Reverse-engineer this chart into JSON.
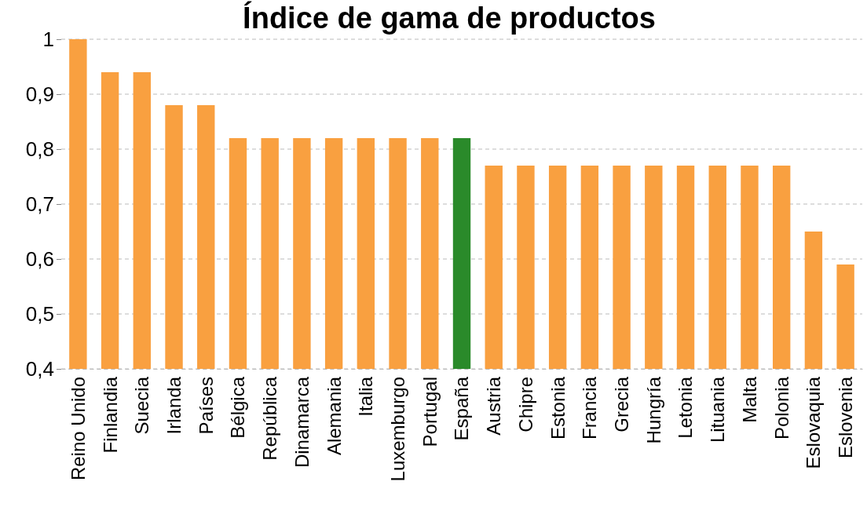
{
  "chart_data": {
    "type": "bar",
    "title": "Índice de gama de productos",
    "categories": [
      "Reino Unido",
      "Finlandia",
      "Suecia",
      "Irlanda",
      "Países",
      "Bélgica",
      "República",
      "Dinamarca",
      "Alemania",
      "Italia",
      "Luxemburgo",
      "Portugal",
      "España",
      "Austria",
      "Chipre",
      "Estonia",
      "Francia",
      "Grecia",
      "Hungría",
      "Letonia",
      "Lituania",
      "Malta",
      "Polonia",
      "Eslovaquia",
      "Eslovenia"
    ],
    "values": [
      1,
      0.94,
      0.94,
      0.88,
      0.88,
      0.82,
      0.82,
      0.82,
      0.82,
      0.82,
      0.82,
      0.82,
      0.82,
      0.77,
      0.77,
      0.77,
      0.77,
      0.77,
      0.77,
      0.77,
      0.77,
      0.77,
      0.77,
      0.65,
      0.59
    ],
    "colors": [
      "#f9a040",
      "#f9a040",
      "#f9a040",
      "#f9a040",
      "#f9a040",
      "#f9a040",
      "#f9a040",
      "#f9a040",
      "#f9a040",
      "#f9a040",
      "#f9a040",
      "#f9a040",
      "#2a8a2a",
      "#f9a040",
      "#f9a040",
      "#f9a040",
      "#f9a040",
      "#f9a040",
      "#f9a040",
      "#f9a040",
      "#f9a040",
      "#f9a040",
      "#f9a040",
      "#f9a040",
      "#f9a040"
    ],
    "ylim": [
      0.4,
      1
    ],
    "yticks": [
      {
        "value": 0.4,
        "label": "0,4"
      },
      {
        "value": 0.5,
        "label": "0,5"
      },
      {
        "value": 0.6,
        "label": "0,6"
      },
      {
        "value": 0.7,
        "label": "0,7"
      },
      {
        "value": 0.8,
        "label": "0,8"
      },
      {
        "value": 0.9,
        "label": "0,9"
      },
      {
        "value": 1,
        "label": "1"
      }
    ],
    "grid": "y"
  }
}
